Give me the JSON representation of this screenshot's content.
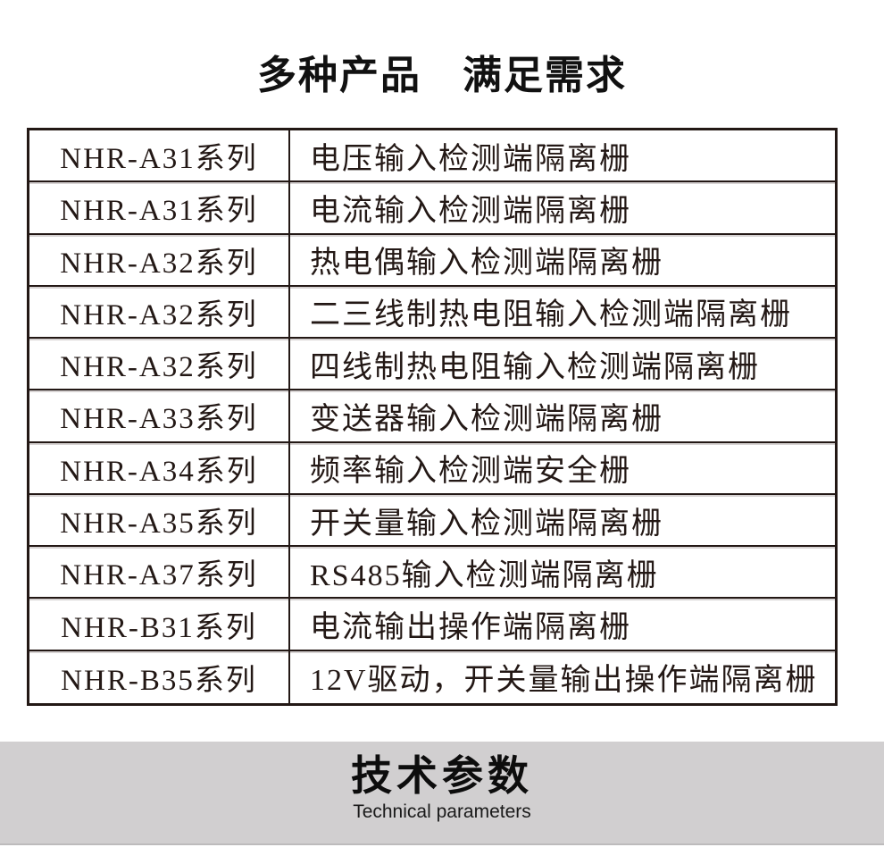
{
  "header": {
    "title": "多种产品　满足需求"
  },
  "table": {
    "rows": [
      {
        "series": "NHR-A31系列",
        "desc": "电压输入检测端隔离栅"
      },
      {
        "series": "NHR-A31系列",
        "desc": "电流输入检测端隔离栅"
      },
      {
        "series": "NHR-A32系列",
        "desc": "热电偶输入检测端隔离栅"
      },
      {
        "series": "NHR-A32系列",
        "desc": "二三线制热电阻输入检测端隔离栅"
      },
      {
        "series": "NHR-A32系列",
        "desc": "四线制热电阻输入检测端隔离栅"
      },
      {
        "series": "NHR-A33系列",
        "desc": "变送器输入检测端隔离栅"
      },
      {
        "series": "NHR-A34系列",
        "desc": "频率输入检测端安全栅"
      },
      {
        "series": "NHR-A35系列",
        "desc": "开关量输入检测端隔离栅"
      },
      {
        "series": "NHR-A37系列",
        "desc": "RS485输入检测端隔离栅"
      },
      {
        "series": "NHR-B31系列",
        "desc": "电流输出操作端隔离栅"
      },
      {
        "series": "NHR-B35系列",
        "desc": "12V驱动，开关量输出操作端隔离栅"
      }
    ]
  },
  "section_banner": {
    "title_cn": "技术参数",
    "title_en": "Technical parameters",
    "background": "#d1cfd0"
  },
  "colors": {
    "text": "#231815",
    "table_border": "#231815",
    "banner_background": "#d1cfd0"
  }
}
